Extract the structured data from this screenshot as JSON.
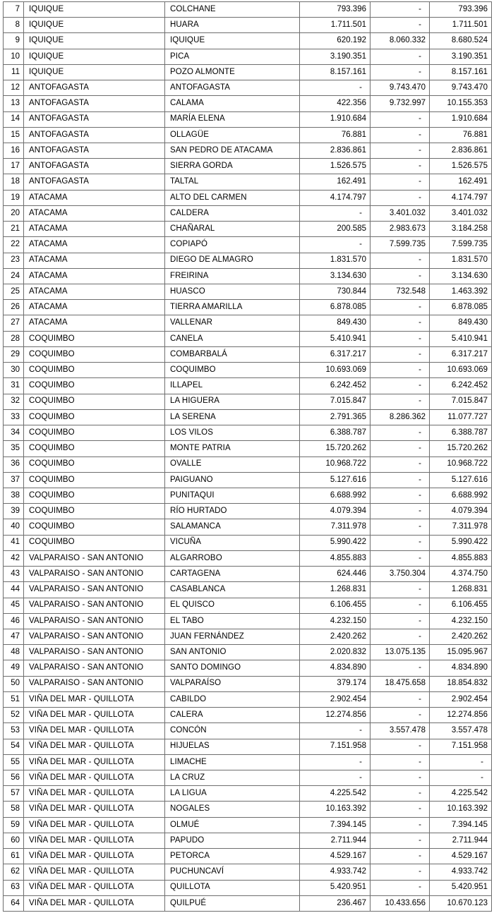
{
  "colors": {
    "border": "#6e6e6e",
    "text": "#000000",
    "background": "#ffffff"
  },
  "table": {
    "empty_marker": "-",
    "column_keys": [
      "num",
      "province",
      "commune",
      "amount_a",
      "amount_b",
      "total"
    ],
    "rows": [
      {
        "num": "7",
        "province": "IQUIQUE",
        "commune": "COLCHANE",
        "amount_a": "793.396",
        "amount_b": "-",
        "total": "793.396"
      },
      {
        "num": "8",
        "province": "IQUIQUE",
        "commune": "HUARA",
        "amount_a": "1.711.501",
        "amount_b": "-",
        "total": "1.711.501"
      },
      {
        "num": "9",
        "province": "IQUIQUE",
        "commune": "IQUIQUE",
        "amount_a": "620.192",
        "amount_b": "8.060.332",
        "total": "8.680.524"
      },
      {
        "num": "10",
        "province": "IQUIQUE",
        "commune": "PICA",
        "amount_a": "3.190.351",
        "amount_b": "-",
        "total": "3.190.351"
      },
      {
        "num": "11",
        "province": "IQUIQUE",
        "commune": "POZO ALMONTE",
        "amount_a": "8.157.161",
        "amount_b": "-",
        "total": "8.157.161"
      },
      {
        "num": "12",
        "province": "ANTOFAGASTA",
        "commune": "ANTOFAGASTA",
        "amount_a": "-",
        "amount_b": "9.743.470",
        "total": "9.743.470"
      },
      {
        "num": "13",
        "province": "ANTOFAGASTA",
        "commune": "CALAMA",
        "amount_a": "422.356",
        "amount_b": "9.732.997",
        "total": "10.155.353"
      },
      {
        "num": "14",
        "province": "ANTOFAGASTA",
        "commune": "MARÍA ELENA",
        "amount_a": "1.910.684",
        "amount_b": "-",
        "total": "1.910.684"
      },
      {
        "num": "15",
        "province": "ANTOFAGASTA",
        "commune": "OLLAGÜE",
        "amount_a": "76.881",
        "amount_b": "-",
        "total": "76.881"
      },
      {
        "num": "16",
        "province": "ANTOFAGASTA",
        "commune": "SAN PEDRO DE ATACAMA",
        "amount_a": "2.836.861",
        "amount_b": "-",
        "total": "2.836.861"
      },
      {
        "num": "17",
        "province": "ANTOFAGASTA",
        "commune": "SIERRA GORDA",
        "amount_a": "1.526.575",
        "amount_b": "-",
        "total": "1.526.575"
      },
      {
        "num": "18",
        "province": "ANTOFAGASTA",
        "commune": "TALTAL",
        "amount_a": "162.491",
        "amount_b": "-",
        "total": "162.491"
      },
      {
        "num": "19",
        "province": "ATACAMA",
        "commune": "ALTO DEL CARMEN",
        "amount_a": "4.174.797",
        "amount_b": "-",
        "total": "4.174.797"
      },
      {
        "num": "20",
        "province": "ATACAMA",
        "commune": "CALDERA",
        "amount_a": "-",
        "amount_b": "3.401.032",
        "total": "3.401.032"
      },
      {
        "num": "21",
        "province": "ATACAMA",
        "commune": "CHAÑARAL",
        "amount_a": "200.585",
        "amount_b": "2.983.673",
        "total": "3.184.258"
      },
      {
        "num": "22",
        "province": "ATACAMA",
        "commune": "COPIAPÓ",
        "amount_a": "-",
        "amount_b": "7.599.735",
        "total": "7.599.735"
      },
      {
        "num": "23",
        "province": "ATACAMA",
        "commune": "DIEGO DE ALMAGRO",
        "amount_a": "1.831.570",
        "amount_b": "-",
        "total": "1.831.570"
      },
      {
        "num": "24",
        "province": "ATACAMA",
        "commune": "FREIRINA",
        "amount_a": "3.134.630",
        "amount_b": "-",
        "total": "3.134.630"
      },
      {
        "num": "25",
        "province": "ATACAMA",
        "commune": "HUASCO",
        "amount_a": "730.844",
        "amount_b": "732.548",
        "total": "1.463.392"
      },
      {
        "num": "26",
        "province": "ATACAMA",
        "commune": "TIERRA AMARILLA",
        "amount_a": "6.878.085",
        "amount_b": "-",
        "total": "6.878.085"
      },
      {
        "num": "27",
        "province": "ATACAMA",
        "commune": "VALLENAR",
        "amount_a": "849.430",
        "amount_b": "-",
        "total": "849.430"
      },
      {
        "num": "28",
        "province": "COQUIMBO",
        "commune": "CANELA",
        "amount_a": "5.410.941",
        "amount_b": "-",
        "total": "5.410.941"
      },
      {
        "num": "29",
        "province": "COQUIMBO",
        "commune": "COMBARBALÁ",
        "amount_a": "6.317.217",
        "amount_b": "-",
        "total": "6.317.217"
      },
      {
        "num": "30",
        "province": "COQUIMBO",
        "commune": "COQUIMBO",
        "amount_a": "10.693.069",
        "amount_b": "-",
        "total": "10.693.069"
      },
      {
        "num": "31",
        "province": "COQUIMBO",
        "commune": "ILLAPEL",
        "amount_a": "6.242.452",
        "amount_b": "-",
        "total": "6.242.452"
      },
      {
        "num": "32",
        "province": "COQUIMBO",
        "commune": "LA HIGUERA",
        "amount_a": "7.015.847",
        "amount_b": "-",
        "total": "7.015.847"
      },
      {
        "num": "33",
        "province": "COQUIMBO",
        "commune": "LA SERENA",
        "amount_a": "2.791.365",
        "amount_b": "8.286.362",
        "total": "11.077.727"
      },
      {
        "num": "34",
        "province": "COQUIMBO",
        "commune": "LOS VILOS",
        "amount_a": "6.388.787",
        "amount_b": "-",
        "total": "6.388.787"
      },
      {
        "num": "35",
        "province": "COQUIMBO",
        "commune": "MONTE PATRIA",
        "amount_a": "15.720.262",
        "amount_b": "-",
        "total": "15.720.262"
      },
      {
        "num": "36",
        "province": "COQUIMBO",
        "commune": "OVALLE",
        "amount_a": "10.968.722",
        "amount_b": "-",
        "total": "10.968.722"
      },
      {
        "num": "37",
        "province": "COQUIMBO",
        "commune": "PAIGUANO",
        "amount_a": "5.127.616",
        "amount_b": "-",
        "total": "5.127.616"
      },
      {
        "num": "38",
        "province": "COQUIMBO",
        "commune": "PUNITAQUI",
        "amount_a": "6.688.992",
        "amount_b": "-",
        "total": "6.688.992"
      },
      {
        "num": "39",
        "province": "COQUIMBO",
        "commune": "RÍO HURTADO",
        "amount_a": "4.079.394",
        "amount_b": "-",
        "total": "4.079.394"
      },
      {
        "num": "40",
        "province": "COQUIMBO",
        "commune": "SALAMANCA",
        "amount_a": "7.311.978",
        "amount_b": "-",
        "total": "7.311.978"
      },
      {
        "num": "41",
        "province": "COQUIMBO",
        "commune": "VICUÑA",
        "amount_a": "5.990.422",
        "amount_b": "-",
        "total": "5.990.422"
      },
      {
        "num": "42",
        "province": "VALPARAISO - SAN ANTONIO",
        "commune": "ALGARROBO",
        "amount_a": "4.855.883",
        "amount_b": "-",
        "total": "4.855.883"
      },
      {
        "num": "43",
        "province": "VALPARAISO - SAN ANTONIO",
        "commune": "CARTAGENA",
        "amount_a": "624.446",
        "amount_b": "3.750.304",
        "total": "4.374.750"
      },
      {
        "num": "44",
        "province": "VALPARAISO - SAN ANTONIO",
        "commune": "CASABLANCA",
        "amount_a": "1.268.831",
        "amount_b": "-",
        "total": "1.268.831"
      },
      {
        "num": "45",
        "province": "VALPARAISO - SAN ANTONIO",
        "commune": "EL QUISCO",
        "amount_a": "6.106.455",
        "amount_b": "-",
        "total": "6.106.455"
      },
      {
        "num": "46",
        "province": "VALPARAISO - SAN ANTONIO",
        "commune": "EL TABO",
        "amount_a": "4.232.150",
        "amount_b": "-",
        "total": "4.232.150"
      },
      {
        "num": "47",
        "province": "VALPARAISO - SAN ANTONIO",
        "commune": "JUAN FERNÁNDEZ",
        "amount_a": "2.420.262",
        "amount_b": "-",
        "total": "2.420.262"
      },
      {
        "num": "48",
        "province": "VALPARAISO - SAN ANTONIO",
        "commune": "SAN ANTONIO",
        "amount_a": "2.020.832",
        "amount_b": "13.075.135",
        "total": "15.095.967"
      },
      {
        "num": "49",
        "province": "VALPARAISO - SAN ANTONIO",
        "commune": "SANTO DOMINGO",
        "amount_a": "4.834.890",
        "amount_b": "-",
        "total": "4.834.890"
      },
      {
        "num": "50",
        "province": "VALPARAISO - SAN ANTONIO",
        "commune": "VALPARAÍSO",
        "amount_a": "379.174",
        "amount_b": "18.475.658",
        "total": "18.854.832"
      },
      {
        "num": "51",
        "province": "VIÑA DEL MAR - QUILLOTA",
        "commune": "CABILDO",
        "amount_a": "2.902.454",
        "amount_b": "-",
        "total": "2.902.454"
      },
      {
        "num": "52",
        "province": "VIÑA DEL MAR - QUILLOTA",
        "commune": "CALERA",
        "amount_a": "12.274.856",
        "amount_b": "-",
        "total": "12.274.856"
      },
      {
        "num": "53",
        "province": "VIÑA DEL MAR - QUILLOTA",
        "commune": "CONCÓN",
        "amount_a": "-",
        "amount_b": "3.557.478",
        "total": "3.557.478"
      },
      {
        "num": "54",
        "province": "VIÑA DEL MAR - QUILLOTA",
        "commune": "HIJUELAS",
        "amount_a": "7.151.958",
        "amount_b": "-",
        "total": "7.151.958"
      },
      {
        "num": "55",
        "province": "VIÑA DEL MAR - QUILLOTA",
        "commune": "LIMACHE",
        "amount_a": "-",
        "amount_b": "-",
        "total": "-"
      },
      {
        "num": "56",
        "province": "VIÑA DEL MAR - QUILLOTA",
        "commune": "LA CRUZ",
        "amount_a": "-",
        "amount_b": "-",
        "total": "-"
      },
      {
        "num": "57",
        "province": "VIÑA DEL MAR - QUILLOTA",
        "commune": "LA LIGUA",
        "amount_a": "4.225.542",
        "amount_b": "-",
        "total": "4.225.542"
      },
      {
        "num": "58",
        "province": "VIÑA DEL MAR - QUILLOTA",
        "commune": "NOGALES",
        "amount_a": "10.163.392",
        "amount_b": "-",
        "total": "10.163.392"
      },
      {
        "num": "59",
        "province": "VIÑA DEL MAR - QUILLOTA",
        "commune": "OLMUÉ",
        "amount_a": "7.394.145",
        "amount_b": "-",
        "total": "7.394.145"
      },
      {
        "num": "60",
        "province": "VIÑA DEL MAR - QUILLOTA",
        "commune": "PAPUDO",
        "amount_a": "2.711.944",
        "amount_b": "-",
        "total": "2.711.944"
      },
      {
        "num": "61",
        "province": "VIÑA DEL MAR - QUILLOTA",
        "commune": "PETORCA",
        "amount_a": "4.529.167",
        "amount_b": "-",
        "total": "4.529.167"
      },
      {
        "num": "62",
        "province": "VIÑA DEL MAR - QUILLOTA",
        "commune": "PUCHUNCAVÍ",
        "amount_a": "4.933.742",
        "amount_b": "-",
        "total": "4.933.742"
      },
      {
        "num": "63",
        "province": "VIÑA DEL MAR - QUILLOTA",
        "commune": "QUILLOTA",
        "amount_a": "5.420.951",
        "amount_b": "-",
        "total": "5.420.951"
      },
      {
        "num": "64",
        "province": "VIÑA DEL MAR - QUILLOTA",
        "commune": "QUILPUÉ",
        "amount_a": "236.467",
        "amount_b": "10.433.656",
        "total": "10.670.123"
      }
    ]
  }
}
